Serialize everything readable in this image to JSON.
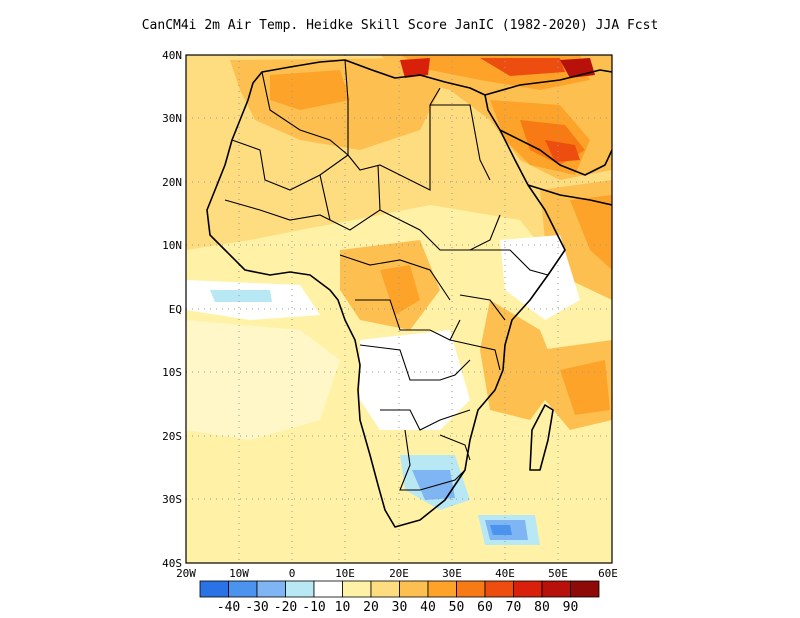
{
  "title": "CanCM4i  2m Air Temp. Heidke Skill Score JanIC (1982-2020) JJA Fcst",
  "map": {
    "lon_range": [
      -20,
      60
    ],
    "lat_range": [
      -40,
      40
    ],
    "lat_ticks": [
      "40N",
      "30N",
      "20N",
      "10N",
      "EQ",
      "10S",
      "20S",
      "30S",
      "40S"
    ],
    "lon_ticks": [
      "20W",
      "10W",
      "0",
      "10E",
      "20E",
      "30E",
      "40E",
      "50E",
      "60E"
    ]
  },
  "colorbar": {
    "colors": [
      "#2a73e6",
      "#4a93ee",
      "#7fb5f2",
      "#b8e8f4",
      "#ffffff",
      "#fff2a6",
      "#fedc80",
      "#fdc050",
      "#fda32a",
      "#f87a14",
      "#ee4d10",
      "#d9200a",
      "#b8100a",
      "#8e0a08"
    ],
    "labels": [
      "-40",
      "-30",
      "-20",
      "-10",
      "10",
      "20",
      "30",
      "40",
      "50",
      "60",
      "70",
      "80",
      "90"
    ]
  }
}
